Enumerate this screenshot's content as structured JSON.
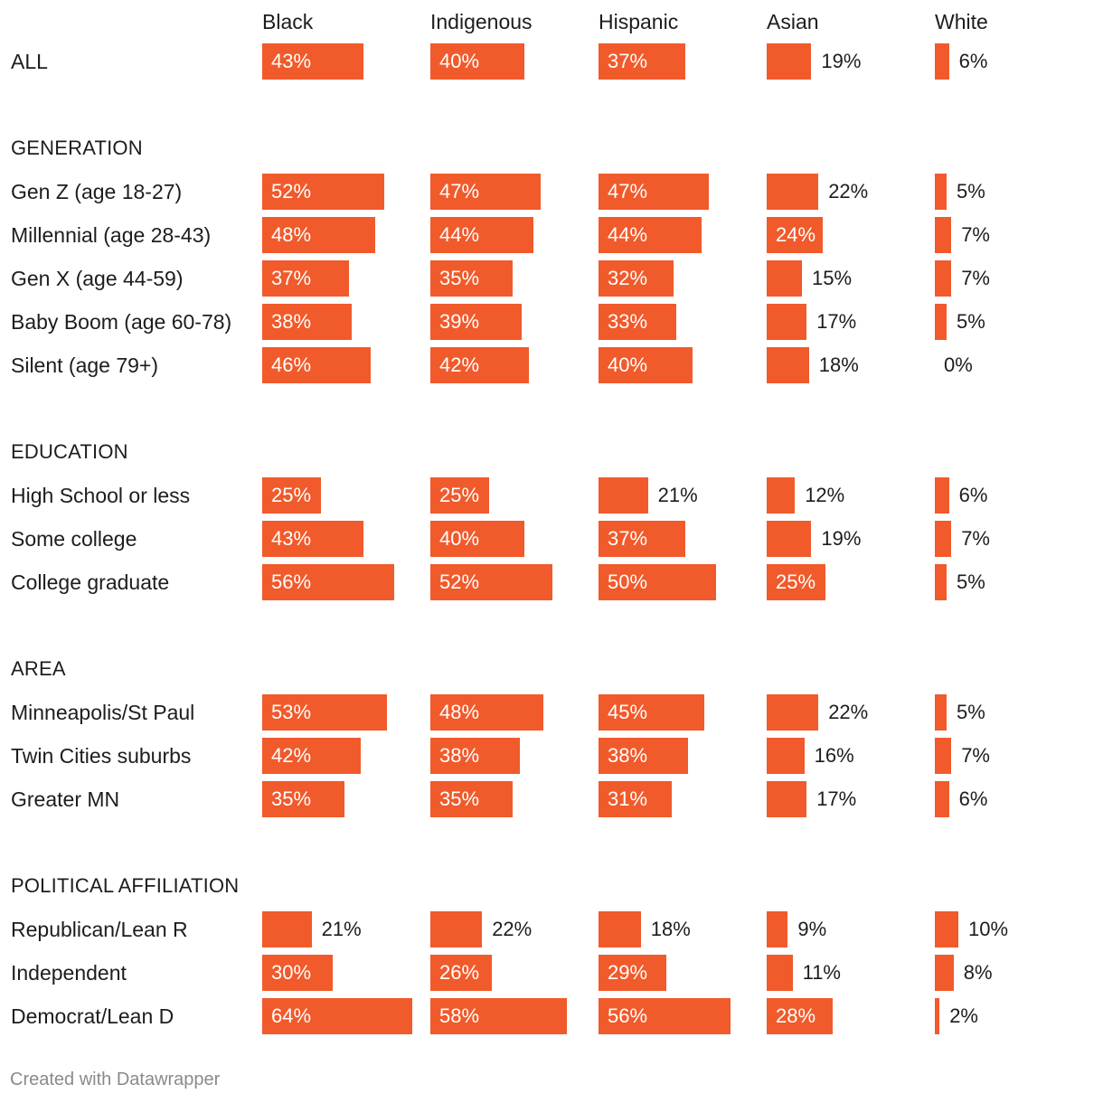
{
  "chart_data": {
    "type": "bar",
    "columns": [
      "Black",
      "Indigenous",
      "Hispanic",
      "Asian",
      "White"
    ],
    "value_suffix": "%",
    "xlim": [
      0,
      100
    ],
    "bar_color": "#f15a2b",
    "rows": [
      {
        "kind": "row",
        "label": "ALL",
        "values": [
          43,
          40,
          37,
          19,
          6
        ]
      },
      {
        "kind": "section",
        "label": "GENERATION"
      },
      {
        "kind": "row",
        "label": "Gen Z (age 18-27)",
        "values": [
          52,
          47,
          47,
          22,
          5
        ]
      },
      {
        "kind": "row",
        "label": "Millennial (age 28-43)",
        "values": [
          48,
          44,
          44,
          24,
          7
        ]
      },
      {
        "kind": "row",
        "label": "Gen X (age 44-59)",
        "values": [
          37,
          35,
          32,
          15,
          7
        ]
      },
      {
        "kind": "row",
        "label": "Baby Boom (age 60-78)",
        "values": [
          38,
          39,
          33,
          17,
          5
        ]
      },
      {
        "kind": "row",
        "label": "Silent (age 79+)",
        "values": [
          46,
          42,
          40,
          18,
          0
        ]
      },
      {
        "kind": "section",
        "label": "EDUCATION"
      },
      {
        "kind": "row",
        "label": "High School or less",
        "values": [
          25,
          25,
          21,
          12,
          6
        ]
      },
      {
        "kind": "row",
        "label": "Some college",
        "values": [
          43,
          40,
          37,
          19,
          7
        ]
      },
      {
        "kind": "row",
        "label": "College graduate",
        "values": [
          56,
          52,
          50,
          25,
          5
        ]
      },
      {
        "kind": "section",
        "label": "AREA"
      },
      {
        "kind": "row",
        "label": "Minneapolis/St Paul",
        "values": [
          53,
          48,
          45,
          22,
          5
        ]
      },
      {
        "kind": "row",
        "label": "Twin Cities suburbs",
        "values": [
          42,
          38,
          38,
          16,
          7
        ]
      },
      {
        "kind": "row",
        "label": "Greater MN",
        "values": [
          35,
          35,
          31,
          17,
          6
        ]
      },
      {
        "kind": "section",
        "label": "POLITICAL AFFILIATION"
      },
      {
        "kind": "row",
        "label": "Republican/Lean R",
        "values": [
          21,
          22,
          18,
          9,
          10
        ]
      },
      {
        "kind": "row",
        "label": "Independent",
        "values": [
          30,
          26,
          29,
          11,
          8
        ]
      },
      {
        "kind": "row",
        "label": "Democrat/Lean D",
        "values": [
          64,
          58,
          56,
          28,
          2
        ]
      }
    ]
  },
  "footer": {
    "credit": "Created with Datawrapper"
  }
}
